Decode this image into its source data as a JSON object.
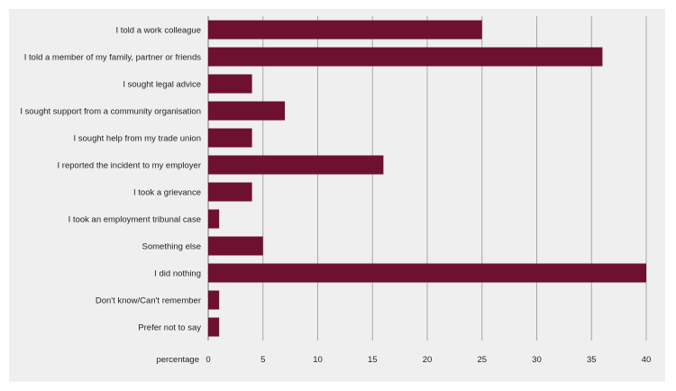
{
  "chart_data": {
    "type": "bar",
    "orientation": "horizontal",
    "categories": [
      "I told a work colleague",
      "I told a member of my family, partner or friends",
      "I sought legal advice",
      "I sought support from a community organisation",
      "I sought help from my trade union",
      "I reported the incident to my employer",
      "I took a grievance",
      "I took an employment tribunal case",
      "Something else",
      "I did nothing",
      "Don't know/Can't remember",
      "Prefer not to say"
    ],
    "values": [
      25,
      36,
      4,
      7,
      4,
      16,
      4,
      1,
      5,
      40,
      1,
      1
    ],
    "xlabel": "percentage",
    "xlim": [
      0,
      40
    ],
    "xticks": [
      0,
      5,
      10,
      15,
      20,
      25,
      30,
      35,
      40
    ],
    "grid": "vertical",
    "bar_color": "#6e1030",
    "background_color": "#efefef"
  }
}
